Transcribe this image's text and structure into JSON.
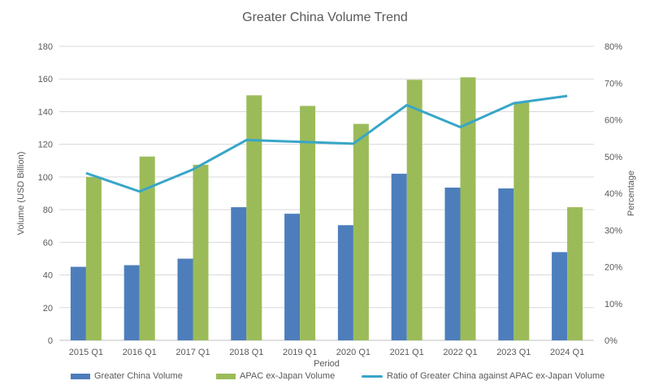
{
  "title": "Greater China Volume Trend",
  "chart_data": {
    "type": "bar",
    "subtype": "grouped-bars-with-line-combo",
    "categories": [
      "2015 Q1",
      "2016 Q1",
      "2017 Q1",
      "2018 Q1",
      "2019 Q1",
      "2020 Q1",
      "2021 Q1",
      "2022 Q1",
      "2023 Q1",
      "2024 Q1"
    ],
    "series": [
      {
        "name": "Greater China Volume",
        "type": "bar",
        "axis": "left",
        "color": "#4D7EBB",
        "values": [
          45,
          46,
          50,
          81.5,
          77.5,
          70.5,
          102,
          93.5,
          93,
          54
        ]
      },
      {
        "name": "APAC ex-Japan Volume",
        "type": "bar",
        "axis": "left",
        "color": "#9BBB59",
        "values": [
          100,
          112.5,
          107.5,
          150,
          143.5,
          132.5,
          159.5,
          161,
          146,
          81.5
        ]
      },
      {
        "name": "Ratio of Greater China against APAC ex-Japan Volume",
        "type": "line",
        "axis": "right",
        "color": "#38A6C8",
        "values": [
          45.5,
          40.5,
          46.5,
          54.5,
          54,
          53.5,
          64,
          58,
          64.5,
          66.5
        ]
      }
    ],
    "left_axis": {
      "title": "Volume (USD Billion)",
      "min": 0,
      "max": 180,
      "step": 20,
      "tick_labels": [
        "0",
        "20",
        "40",
        "60",
        "80",
        "100",
        "120",
        "140",
        "160",
        "180"
      ]
    },
    "right_axis": {
      "title": "Percentage",
      "min": 0,
      "max": 80,
      "step": 10,
      "suffix": "%",
      "tick_labels": [
        "0%",
        "10%",
        "20%",
        "30%",
        "40%",
        "50%",
        "60%",
        "70%",
        "80%"
      ]
    },
    "x_axis": {
      "title": "Period"
    },
    "grid": true,
    "legend_position": "bottom"
  },
  "style": {
    "text_color": "#595959",
    "gridline_color": "#D9D9D9",
    "axisline_color": "#C0C0C0",
    "background": "#FFFFFF"
  }
}
